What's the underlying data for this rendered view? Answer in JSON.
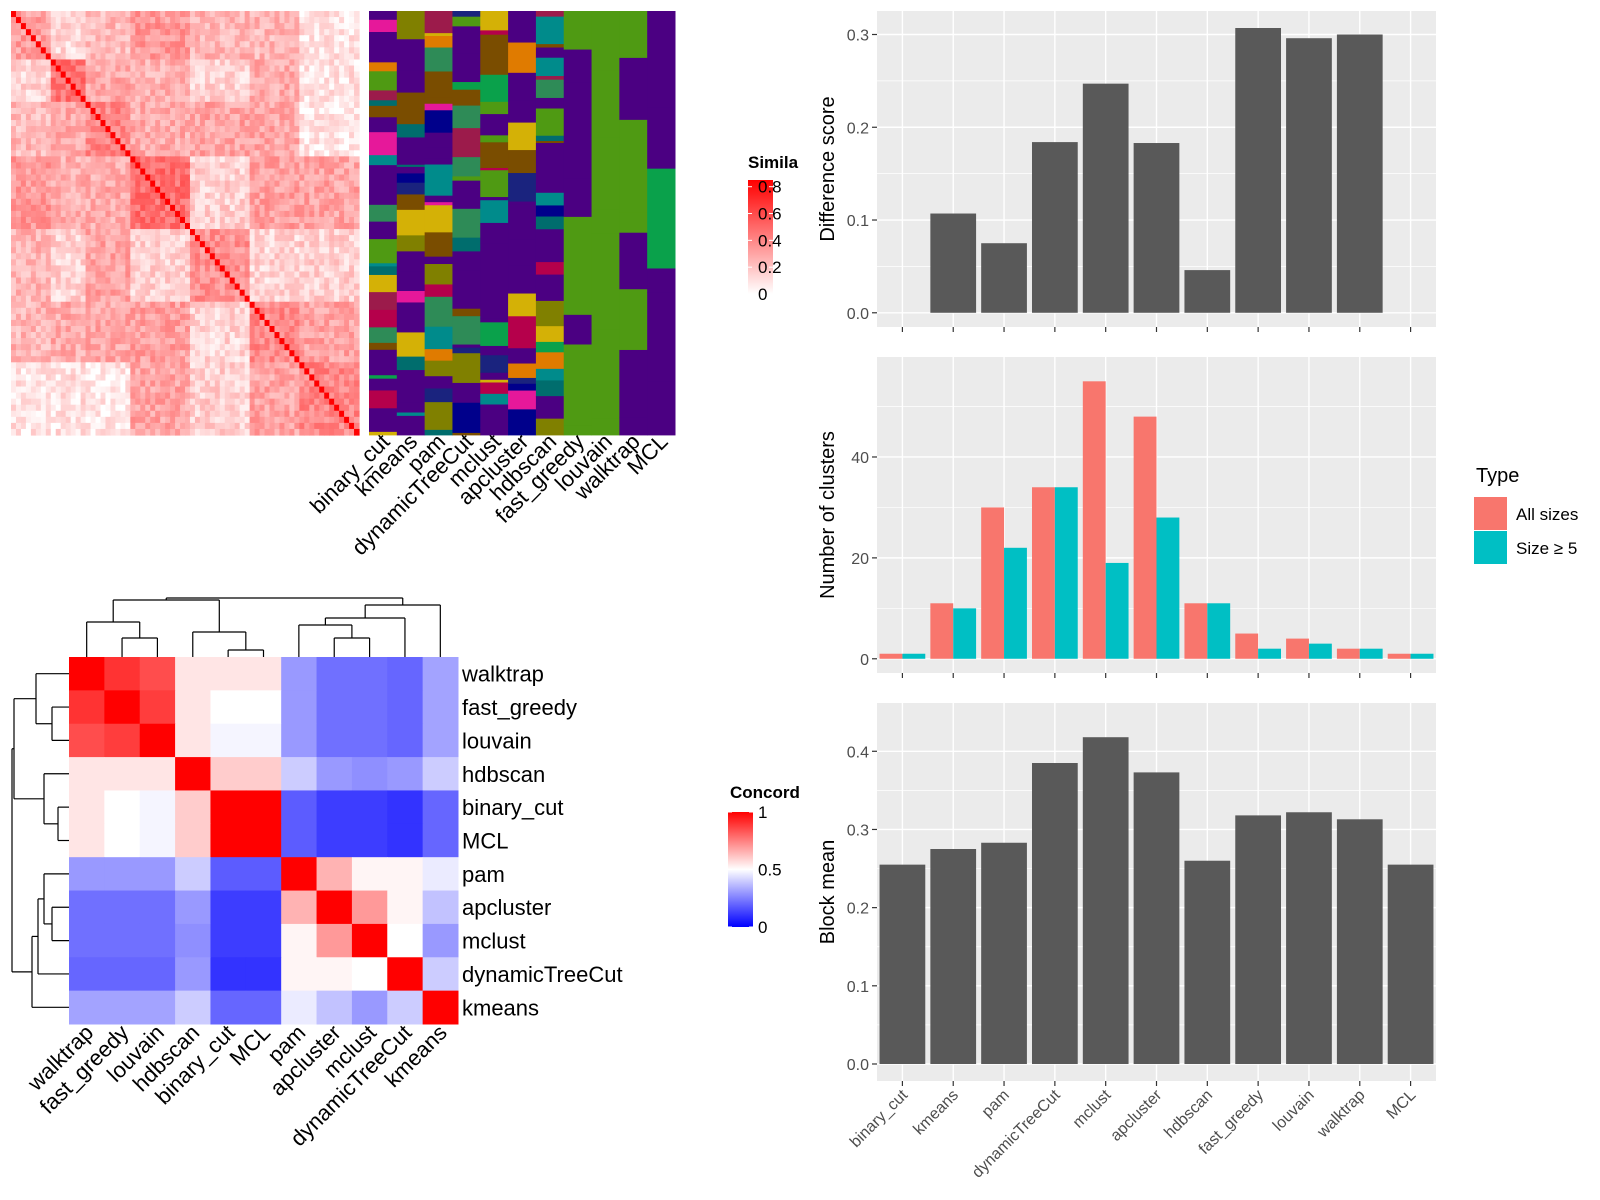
{
  "methods_order": [
    "binary_cut",
    "kmeans",
    "pam",
    "dynamicTreeCut",
    "mclust",
    "apcluster",
    "hdbscan",
    "fast_greedy",
    "louvain",
    "walktrap",
    "MCL"
  ],
  "similarity_heatmap": {
    "legend_title": "Simila",
    "legend_ticks": [
      "0.8",
      "0.6",
      "0.4",
      "0.2",
      "0"
    ],
    "columns": [
      "binary_cut",
      "kmeans",
      "pam",
      "dynamicTreeCut",
      "mclust",
      "apcluster",
      "hdbscan",
      "fast_greedy",
      "louvain",
      "walktrap",
      "MCL"
    ],
    "colors": {
      "low": "#ffffff",
      "high": "#ff0000"
    }
  },
  "concordance_heatmap": {
    "legend_title": "Concord",
    "legend_ticks": [
      "1",
      "0.5",
      "0"
    ],
    "order": [
      "walktrap",
      "fast_greedy",
      "louvain",
      "hdbscan",
      "binary_cut",
      "MCL",
      "pam",
      "apcluster",
      "mclust",
      "dynamicTreeCut",
      "kmeans"
    ],
    "colors": {
      "low": "#0000ff",
      "mid": "#ffffff",
      "high": "#ff0000"
    },
    "matrix": [
      [
        1.0,
        0.9,
        0.85,
        0.55,
        0.55,
        0.55,
        0.3,
        0.22,
        0.22,
        0.2,
        0.32
      ],
      [
        0.9,
        1.0,
        0.88,
        0.55,
        0.5,
        0.5,
        0.3,
        0.22,
        0.22,
        0.2,
        0.32
      ],
      [
        0.85,
        0.88,
        1.0,
        0.55,
        0.48,
        0.48,
        0.3,
        0.22,
        0.22,
        0.2,
        0.32
      ],
      [
        0.55,
        0.55,
        0.55,
        1.0,
        0.6,
        0.6,
        0.4,
        0.3,
        0.28,
        0.3,
        0.4
      ],
      [
        0.55,
        0.5,
        0.48,
        0.6,
        1.0,
        1.0,
        0.18,
        0.12,
        0.12,
        0.1,
        0.2
      ],
      [
        0.55,
        0.5,
        0.48,
        0.6,
        1.0,
        1.0,
        0.18,
        0.12,
        0.12,
        0.1,
        0.2
      ],
      [
        0.3,
        0.3,
        0.3,
        0.4,
        0.18,
        0.18,
        1.0,
        0.65,
        0.52,
        0.52,
        0.46
      ],
      [
        0.22,
        0.22,
        0.22,
        0.3,
        0.12,
        0.12,
        0.65,
        1.0,
        0.7,
        0.52,
        0.38
      ],
      [
        0.22,
        0.22,
        0.22,
        0.28,
        0.12,
        0.12,
        0.52,
        0.7,
        1.0,
        0.5,
        0.3
      ],
      [
        0.2,
        0.2,
        0.2,
        0.3,
        0.1,
        0.1,
        0.52,
        0.52,
        0.5,
        1.0,
        0.4
      ],
      [
        0.32,
        0.32,
        0.32,
        0.4,
        0.2,
        0.2,
        0.46,
        0.38,
        0.3,
        0.4,
        1.0
      ]
    ]
  },
  "chart_data": [
    {
      "type": "bar",
      "categories": [
        "binary_cut",
        "kmeans",
        "pam",
        "dynamicTreeCut",
        "mclust",
        "apcluster",
        "hdbscan",
        "fast_greedy",
        "louvain",
        "walktrap",
        "MCL"
      ],
      "values": [
        0,
        0.107,
        0.075,
        0.184,
        0.247,
        0.183,
        0.046,
        0.307,
        0.296,
        0.3,
        0
      ],
      "ylabel": "Difference score",
      "ylim": [
        0,
        0.31
      ],
      "yticks": [
        "0.0",
        "0.1",
        "0.2",
        "0.3"
      ],
      "grid": true
    },
    {
      "type": "bar",
      "categories": [
        "binary_cut",
        "kmeans",
        "pam",
        "dynamicTreeCut",
        "mclust",
        "apcluster",
        "hdbscan",
        "fast_greedy",
        "louvain",
        "walktrap",
        "MCL"
      ],
      "series": [
        {
          "name": "All sizes",
          "color": "#F8766D",
          "values": [
            1,
            11,
            30,
            34,
            55,
            48,
            11,
            5,
            4,
            2,
            1
          ]
        },
        {
          "name": "Size ≥ 5",
          "color": "#00BFC4",
          "values": [
            1,
            10,
            22,
            34,
            19,
            28,
            11,
            2,
            3,
            2,
            1
          ]
        }
      ],
      "ylabel": "Number of clusters",
      "ylim": [
        0,
        57
      ],
      "yticks": [
        "0",
        "20",
        "40"
      ],
      "legend_title": "Type",
      "legend_position": "right",
      "grid": true
    },
    {
      "type": "bar",
      "categories": [
        "binary_cut",
        "kmeans",
        "pam",
        "dynamicTreeCut",
        "mclust",
        "apcluster",
        "hdbscan",
        "fast_greedy",
        "louvain",
        "walktrap",
        "MCL"
      ],
      "values": [
        0.255,
        0.275,
        0.283,
        0.385,
        0.418,
        0.373,
        0.26,
        0.318,
        0.322,
        0.313,
        0.255
      ],
      "ylabel": "Block mean",
      "ylim": [
        0,
        0.44
      ],
      "yticks": [
        "0.0",
        "0.1",
        "0.2",
        "0.3",
        "0.4"
      ],
      "grid": true
    }
  ]
}
